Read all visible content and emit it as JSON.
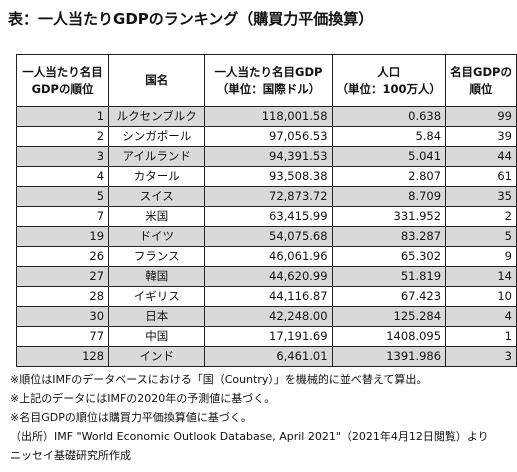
{
  "title": "表：一人当たりGDPのランキング（購買力平価換算）",
  "headers": {
    "rank": [
      "一人当たり名目",
      "GDPの順位"
    ],
    "country": [
      "国名"
    ],
    "gdp": [
      "一人当たり名目GDP",
      "（単位：国際ドル）"
    ],
    "population": [
      "人口",
      "（単位：100万人）"
    ],
    "nominal_rank": [
      "名目GDPの",
      "順位"
    ]
  },
  "rows": [
    {
      "rank": "1",
      "country": "ルクセンブルク",
      "gdp": "118,001.58",
      "population": "0.638",
      "nominal_rank": "99",
      "shaded": true
    },
    {
      "rank": "2",
      "country": "シンガポール",
      "gdp": "97,056.53",
      "population": "5.84",
      "nominal_rank": "39",
      "shaded": false
    },
    {
      "rank": "3",
      "country": "アイルランド",
      "gdp": "94,391.53",
      "population": "5.041",
      "nominal_rank": "44",
      "shaded": true
    },
    {
      "rank": "4",
      "country": "カタール",
      "gdp": "93,508.38",
      "population": "2.807",
      "nominal_rank": "61",
      "shaded": false
    },
    {
      "rank": "5",
      "country": "スイス",
      "gdp": "72,873.72",
      "population": "8.709",
      "nominal_rank": "35",
      "shaded": true
    },
    {
      "rank": "7",
      "country": "米国",
      "gdp": "63,415.99",
      "population": "331.952",
      "nominal_rank": "2",
      "shaded": false
    },
    {
      "rank": "19",
      "country": "ドイツ",
      "gdp": "54,075.68",
      "population": "83.287",
      "nominal_rank": "5",
      "shaded": true
    },
    {
      "rank": "26",
      "country": "フランス",
      "gdp": "46,061.96",
      "population": "65.302",
      "nominal_rank": "9",
      "shaded": false
    },
    {
      "rank": "27",
      "country": "韓国",
      "gdp": "44,620.99",
      "population": "51.819",
      "nominal_rank": "14",
      "shaded": true
    },
    {
      "rank": "28",
      "country": "イギリス",
      "gdp": "44,116.87",
      "population": "67.423",
      "nominal_rank": "10",
      "shaded": false
    },
    {
      "rank": "30",
      "country": "日本",
      "gdp": "42,248.00",
      "population": "125.284",
      "nominal_rank": "4",
      "shaded": true
    },
    {
      "rank": "77",
      "country": "中国",
      "gdp": "17,191.69",
      "population": "1408.095",
      "nominal_rank": "1",
      "shaded": false
    },
    {
      "rank": "128",
      "country": "インド",
      "gdp": "6,461.01",
      "population": "1391.986",
      "nominal_rank": "3",
      "shaded": true
    }
  ],
  "notes": [
    "※順位はIMFのデータベースにおける「国（Country）」を機械的に並べ替えて算出。",
    "※上記のデータにはIMFの2020年の予測値に基づく。",
    "※名目GDPの順位は購買力平価換算値に基づく。",
    "（出所）IMF \"World Economic Outlook Database, April 2021\"（2021年4月12日閲覧）より",
    "ニッセイ基礎研究所作成"
  ]
}
